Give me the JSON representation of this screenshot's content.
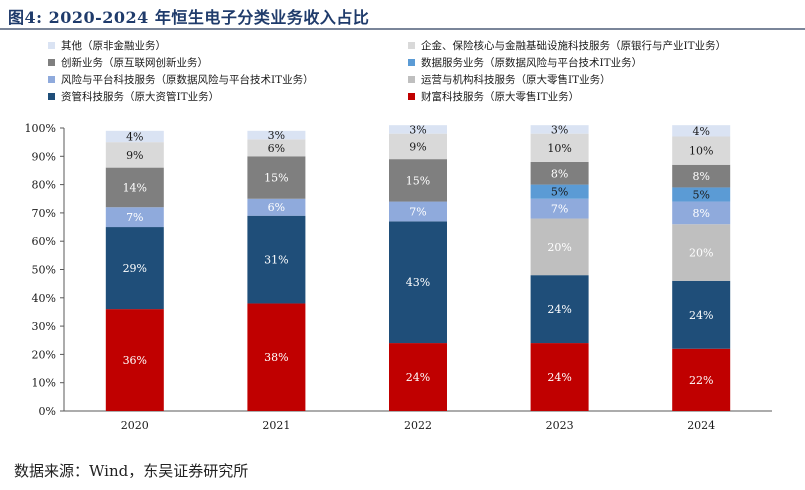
{
  "header": {
    "title": "图4:  2020-2024 年恒生电子分类业务收入占比"
  },
  "source": "数据来源：Wind，东吴证券研究所",
  "chart_data": {
    "type": "bar",
    "stacked": true,
    "categories": [
      "2020",
      "2021",
      "2022",
      "2023",
      "2024"
    ],
    "ylim": [
      0,
      100
    ],
    "yticks": [
      "0%",
      "10%",
      "20%",
      "30%",
      "40%",
      "50%",
      "60%",
      "70%",
      "80%",
      "90%",
      "100%"
    ],
    "grid": false,
    "legend_position": "top",
    "legend": [
      {
        "key": "qita",
        "name": "其他（原非金融业务）"
      },
      {
        "key": "qiye",
        "name": "企金、保险核心与金融基础设施科技服务（原银行与产业IT业务）"
      },
      {
        "key": "chuangxin",
        "name": "创新业务（原互联网创新业务）"
      },
      {
        "key": "shuju",
        "name": "数据服务业务（原数据风险与平台技术IT业务）"
      },
      {
        "key": "fengxian",
        "name": "风险与平台科技服务（原数据风险与平台技术IT业务）"
      },
      {
        "key": "yunying",
        "name": "运营与机构科技服务（原大零售IT业务）"
      },
      {
        "key": "zichan",
        "name": "资管科技服务（原大资管IT业务）"
      },
      {
        "key": "caifu",
        "name": "财富科技服务（原大零售IT业务）"
      }
    ],
    "series": [
      {
        "key": "caifu",
        "name": "财富科技服务（原大零售IT业务）",
        "color": "#c00000",
        "label_color": "#ffffff",
        "values": [
          36,
          38,
          24,
          24,
          22
        ]
      },
      {
        "key": "zichan",
        "name": "资管科技服务（原大资管IT业务）",
        "color": "#1f4e79",
        "label_color": "#ffffff",
        "values": [
          29,
          31,
          43,
          24,
          24
        ]
      },
      {
        "key": "yunying",
        "name": "运营与机构科技服务（原大零售IT业务）",
        "color": "#bfbfbf",
        "label_color": "#ffffff",
        "values": [
          null,
          null,
          null,
          20,
          20
        ]
      },
      {
        "key": "fengxian",
        "name": "风险与平台科技服务（原数据风险与平台技术IT业务）",
        "color": "#8faadc",
        "label_color": "#ffffff",
        "values": [
          7,
          6,
          7,
          7,
          8
        ]
      },
      {
        "key": "shuju",
        "name": "数据服务业务（原数据风险与平台技术IT业务）",
        "color": "#5b9bd5",
        "label_color": "#1a1a1a",
        "values": [
          null,
          null,
          null,
          5,
          5
        ]
      },
      {
        "key": "chuangxin",
        "name": "创新业务（原互联网创新业务）",
        "color": "#7f7f7f",
        "label_color": "#ffffff",
        "values": [
          14,
          15,
          15,
          8,
          8
        ]
      },
      {
        "key": "qiye",
        "name": "企金、保险核心与金融基础设施科技服务（原银行与产业IT业务）",
        "color": "#d9d9d9",
        "label_color": "#1a1a1a",
        "values": [
          9,
          6,
          9,
          10,
          10
        ]
      },
      {
        "key": "qita",
        "name": "其他（原非金融业务）",
        "color": "#dae3f3",
        "label_color": "#1a1a1a",
        "values": [
          4,
          3,
          3,
          3,
          4
        ]
      }
    ]
  }
}
